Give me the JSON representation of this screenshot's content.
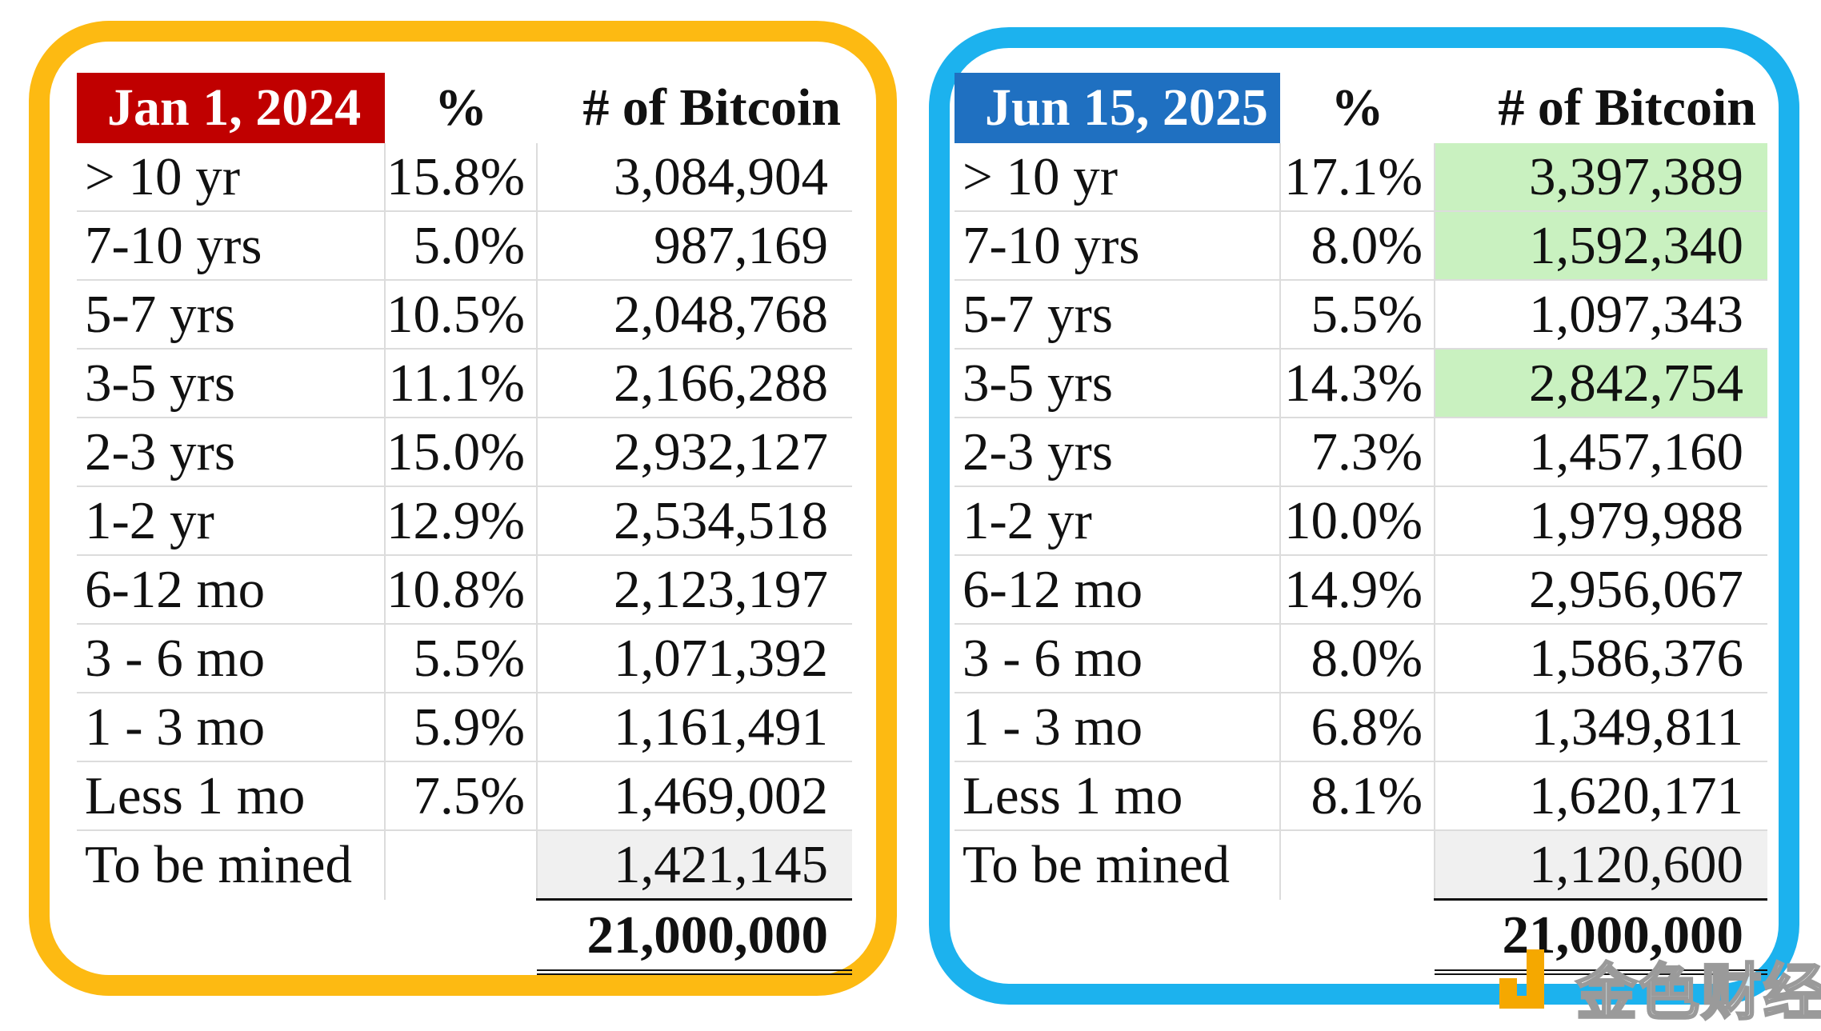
{
  "tables": [
    {
      "date": "Jan 1, 2024",
      "pct_header": "%",
      "btc_header": "# of Bitcoin",
      "rows": [
        {
          "age": "> 10 yr",
          "pct": "15.8%",
          "btc": "3,084,904"
        },
        {
          "age": "7-10 yrs",
          "pct": "5.0%",
          "btc": "987,169"
        },
        {
          "age": "5-7 yrs",
          "pct": "10.5%",
          "btc": "2,048,768"
        },
        {
          "age": "3-5 yrs",
          "pct": "11.1%",
          "btc": "2,166,288"
        },
        {
          "age": "2-3 yrs",
          "pct": "15.0%",
          "btc": "2,932,127"
        },
        {
          "age": "1-2 yr",
          "pct": "12.9%",
          "btc": "2,534,518"
        },
        {
          "age": "6-12 mo",
          "pct": "10.8%",
          "btc": "2,123,197"
        },
        {
          "age": "3 - 6 mo",
          "pct": "5.5%",
          "btc": "1,071,392"
        },
        {
          "age": "1 - 3 mo",
          "pct": "5.9%",
          "btc": "1,161,491"
        },
        {
          "age": "Less 1 mo",
          "pct": "7.5%",
          "btc": "1,469,002"
        }
      ],
      "mined_label": "To be mined",
      "mined_value": "1,421,145",
      "total": "21,000,000"
    },
    {
      "date": "Jun 15, 2025",
      "pct_header": "%",
      "btc_header": "# of Bitcoin",
      "rows": [
        {
          "age": "> 10 yr",
          "pct": "17.1%",
          "btc": "3,397,389"
        },
        {
          "age": "7-10 yrs",
          "pct": "8.0%",
          "btc": "1,592,340"
        },
        {
          "age": "5-7 yrs",
          "pct": "5.5%",
          "btc": "1,097,343"
        },
        {
          "age": "3-5 yrs",
          "pct": "14.3%",
          "btc": "2,842,754"
        },
        {
          "age": "2-3 yrs",
          "pct": "7.3%",
          "btc": "1,457,160"
        },
        {
          "age": "1-2 yr",
          "pct": "10.0%",
          "btc": "1,979,988"
        },
        {
          "age": "6-12 mo",
          "pct": "14.9%",
          "btc": "2,956,067"
        },
        {
          "age": "3 - 6 mo",
          "pct": "8.0%",
          "btc": "1,586,376"
        },
        {
          "age": "1 - 3 mo",
          "pct": "6.8%",
          "btc": "1,349,811"
        },
        {
          "age": "Less 1 mo",
          "pct": "8.1%",
          "btc": "1,620,171"
        }
      ],
      "mined_label": "To be mined",
      "mined_value": "1,120,600",
      "total": "21,000,000"
    }
  ],
  "colors": {
    "left_border": "#FDBA12",
    "right_border": "#1CB2EE",
    "left_header": "#C00000",
    "right_header": "#1F70C1",
    "highlight": "#C9F1C0"
  },
  "watermark": {
    "text": "金色财经",
    "icon": "jinse-logo-icon"
  }
}
